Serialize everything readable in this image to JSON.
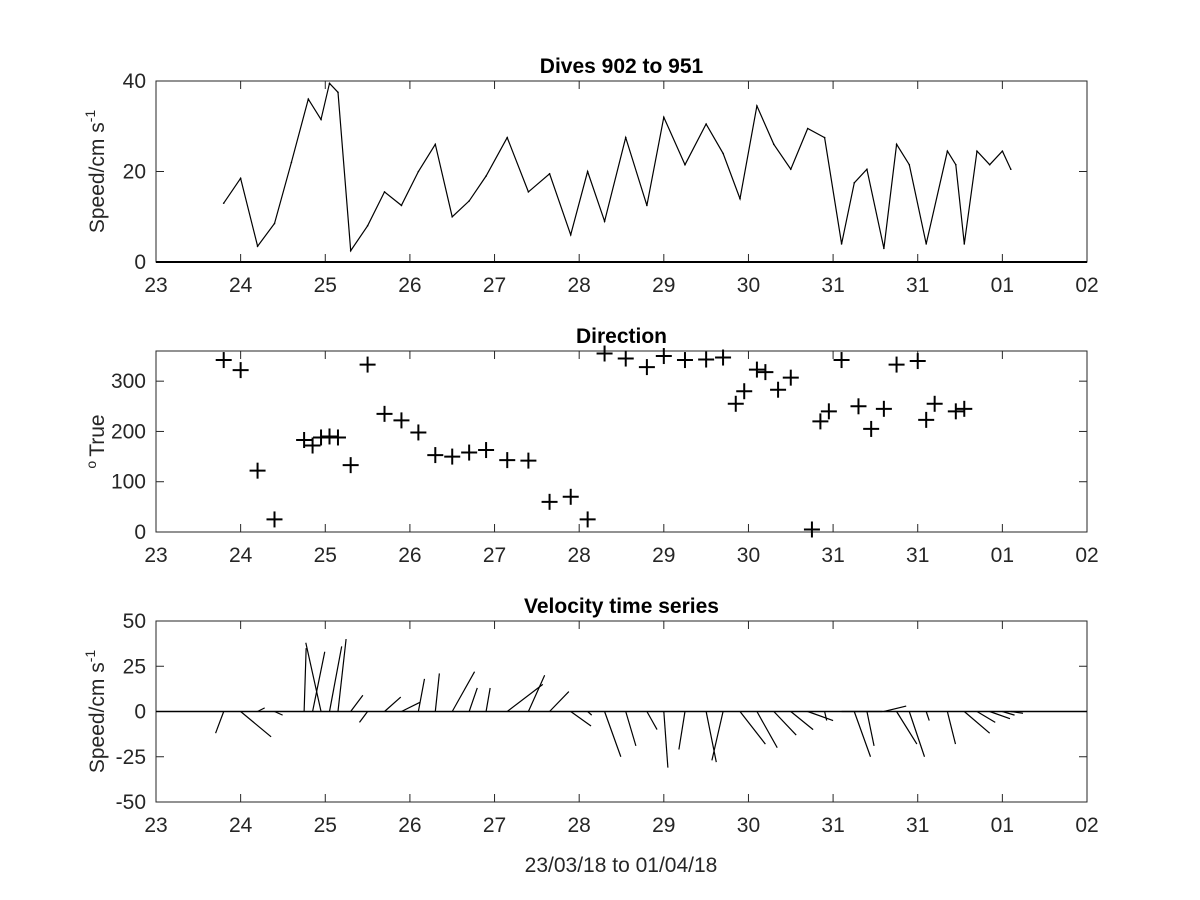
{
  "figure": {
    "xlabel": "23/03/18 to 01/04/18",
    "x_tick_labels": [
      "23",
      "24",
      "25",
      "26",
      "27",
      "28",
      "29",
      "30",
      "31",
      "31",
      "01",
      "02"
    ]
  },
  "chart_data": [
    {
      "type": "line",
      "title": "Dives 902 to 951",
      "xlabel": "",
      "ylabel": "Speed/cm s",
      "ylabel_superscript": "-1",
      "xlim": [
        0,
        11
      ],
      "ylim": [
        0,
        40
      ],
      "y_ticks": [
        "0",
        "20",
        "40"
      ],
      "series": [
        {
          "x": [
            0.8,
            1.0,
            1.2,
            1.4,
            1.6,
            1.8,
            1.95,
            2.05,
            2.15,
            2.3,
            2.5,
            2.7,
            2.9,
            3.1,
            3.3,
            3.5,
            3.7,
            3.9,
            4.15,
            4.4,
            4.65,
            4.9,
            5.1,
            5.3,
            5.55,
            5.8,
            6.0,
            6.25,
            6.5,
            6.7,
            6.9,
            7.1,
            7.3,
            7.5,
            7.7,
            7.9,
            8.1,
            8.25,
            8.4,
            8.6,
            8.75,
            8.9,
            9.1,
            9.35,
            9.45,
            9.55,
            9.7,
            9.85,
            10.0,
            10.1
          ],
          "y": [
            13,
            18.5,
            3.5,
            8.5,
            22,
            36,
            31.5,
            39.5,
            37.5,
            2.5,
            8,
            15.5,
            12.5,
            20,
            26,
            10,
            13.5,
            19,
            27.5,
            15.5,
            19.5,
            6,
            20,
            9,
            27.5,
            12.5,
            32,
            21.5,
            30.5,
            24,
            14,
            34.5,
            26,
            20.5,
            29.5,
            27.5,
            4,
            17.5,
            20.5,
            3,
            26,
            21.5,
            4,
            24.5,
            21.5,
            4,
            24.5,
            21.5,
            24.5,
            20.5
          ]
        }
      ]
    },
    {
      "type": "scatter",
      "title": "Direction",
      "xlabel": "",
      "ylabel": "True",
      "ylabel_superscript": "o",
      "xlim": [
        0,
        11
      ],
      "ylim": [
        0,
        360
      ],
      "y_ticks": [
        "0",
        "100",
        "200",
        "300"
      ],
      "marker": "+",
      "series": [
        {
          "x": [
            0.8,
            1.0,
            1.2,
            1.4,
            1.75,
            1.85,
            1.95,
            2.05,
            2.15,
            2.3,
            2.5,
            2.7,
            2.9,
            3.1,
            3.3,
            3.5,
            3.7,
            3.9,
            4.15,
            4.4,
            4.65,
            4.9,
            5.1,
            5.3,
            5.55,
            5.8,
            6.0,
            6.25,
            6.5,
            6.7,
            6.85,
            6.95,
            7.1,
            7.2,
            7.35,
            7.5,
            7.75,
            7.85,
            7.95,
            8.1,
            8.3,
            8.45,
            8.6,
            8.75,
            9.0,
            9.1,
            9.2,
            9.45,
            9.55
          ],
          "y": [
            342,
            322,
            122,
            25,
            183,
            172,
            188,
            190,
            188,
            133,
            333,
            235,
            222,
            198,
            153,
            150,
            158,
            163,
            143,
            142,
            60,
            70,
            25,
            355,
            345,
            328,
            350,
            342,
            343,
            347,
            255,
            280,
            323,
            318,
            283,
            307,
            5,
            220,
            240,
            342,
            250,
            205,
            245,
            333,
            340,
            223,
            255,
            240,
            245
          ]
        }
      ]
    },
    {
      "type": "line",
      "title": "Velocity time series",
      "xlabel": "23/03/18 to 01/04/18",
      "ylabel": "Speed/cm s",
      "ylabel_superscript": "-1",
      "xlim": [
        0,
        11
      ],
      "ylim": [
        -50,
        50
      ],
      "y_ticks": [
        "-50",
        "-25",
        "0",
        "25",
        "50"
      ],
      "series": [
        {
          "x": [
            0.8,
            1.0,
            1.2,
            1.4,
            1.75,
            1.85,
            1.95,
            2.05,
            2.15,
            2.3,
            2.5,
            2.7,
            2.9,
            3.1,
            3.3,
            3.5,
            3.7,
            3.9,
            4.15,
            4.4,
            4.65,
            4.9,
            5.1,
            5.3,
            5.55,
            5.8,
            6.0,
            6.25,
            6.5,
            6.7,
            6.9,
            7.1,
            7.3,
            7.5,
            7.7,
            7.9,
            8.1,
            8.25,
            8.4,
            8.6,
            8.75,
            8.9,
            9.1,
            9.35,
            9.55,
            9.7,
            9.85,
            10.0,
            10.1
          ],
          "u": [
            -0.8,
            3,
            0.7,
            0.8,
            0.2,
            1.2,
            -1.5,
            1.2,
            0.8,
            1.2,
            -0.8,
            1.6,
            1.8,
            0.6,
            0.4,
            2.2,
            0.8,
            0.4,
            3.5,
            1.6,
            1.9,
            2.0,
            0.4,
            1.6,
            1.0,
            1.0,
            0.4,
            -0.6,
            1.0,
            -1.1,
            2.5,
            2.0,
            2.2,
            2.2,
            2.5,
            0.2,
            4,
            1.6,
            0.7,
            2.2,
            2.0,
            1.5,
            0.3,
            0.8,
            2.5,
            1.8,
            2.0,
            1.2,
            1.2
          ],
          "v": [
            -12,
            -14,
            2,
            -2,
            35,
            33,
            38,
            36,
            40,
            9,
            -6,
            8,
            5,
            18,
            21,
            22,
            13,
            13,
            15,
            20,
            11,
            -8,
            -2,
            -25,
            -19,
            -10,
            -31,
            -21,
            -28,
            -27,
            -18,
            -20,
            -13,
            -10,
            -5,
            -5,
            0,
            -25,
            -19,
            3,
            -18,
            -25,
            -5,
            -18,
            -12,
            -6,
            -4,
            -2,
            -1
          ]
        }
      ]
    }
  ]
}
